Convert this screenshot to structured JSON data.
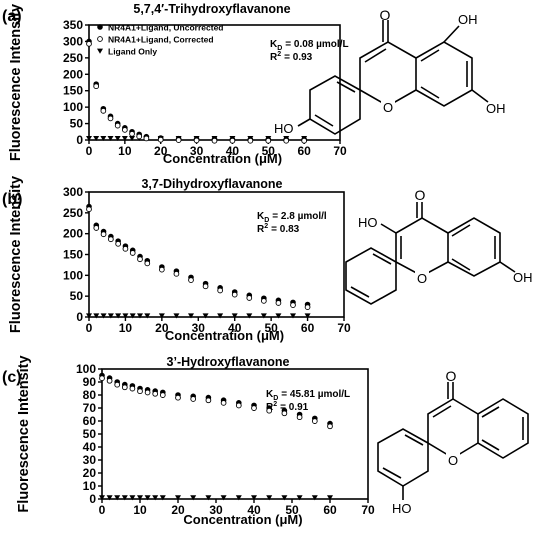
{
  "figure": {
    "panels": [
      {
        "label": "(a)",
        "title": "5,7,4′-Trihydroxyflavanone",
        "stats": {
          "kd_prefix": "K",
          "kd_sub": "D",
          "kd_value": "= 0.08 µmol/L",
          "r2_prefix": "R",
          "r2_sup": "2",
          "r2_value": "= 0.93"
        },
        "substituents": [
          "O",
          "OH",
          "OH",
          "HO"
        ]
      },
      {
        "label": "(b)",
        "title": "3,7-Dihydroxyflavanone",
        "stats": {
          "kd_prefix": "K",
          "kd_sub": "D",
          "kd_value": "= 2.8 µmol/l",
          "r2_prefix": "R",
          "r2_sup": "2",
          "r2_value": "= 0.83"
        },
        "substituents": [
          "O",
          "HO",
          "OH"
        ]
      },
      {
        "label": "(c)",
        "title": "3’-Hydroxyflavanone",
        "stats": {
          "kd_prefix": "K",
          "kd_sub": "D",
          "kd_value": "= 45.81 µmol/L",
          "r2_prefix": "R",
          "r2_sup": "2",
          "r2_value": "= 0.91"
        },
        "substituents": [
          "O",
          "HO"
        ]
      }
    ],
    "ring_oxygen": "O"
  },
  "chart_data": [
    {
      "type": "scatter",
      "title": "5,7,4′-Trihydroxyflavanone",
      "xlabel": "Concentration (μM)",
      "ylabel": "Fluorescence Intensity",
      "xlim": [
        0,
        70
      ],
      "ylim": [
        0,
        350
      ],
      "x_ticks": [
        0,
        10,
        20,
        30,
        40,
        50,
        60,
        70
      ],
      "y_ticks": [
        0,
        50,
        100,
        150,
        200,
        250,
        300,
        350
      ],
      "grid": false,
      "legend": "top-left",
      "series": [
        {
          "name": "NR4A1+Ligand, Uncorrected",
          "marker": "filled-circle",
          "x": [
            0,
            2,
            4,
            6,
            8,
            10,
            12,
            14,
            16,
            20,
            25,
            30,
            35,
            40,
            45,
            50,
            55,
            60
          ],
          "y": [
            300,
            170,
            95,
            72,
            50,
            37,
            25,
            17,
            10,
            6,
            4,
            3,
            3,
            2,
            2,
            2,
            2,
            2
          ]
        },
        {
          "name": "NR4A1+Ligand, Corrected",
          "marker": "open-circle",
          "x": [
            0,
            2,
            4,
            6,
            8,
            10,
            12,
            14,
            16,
            20,
            25,
            30,
            35,
            40,
            45,
            50,
            55,
            60
          ],
          "y": [
            297,
            168,
            93,
            70,
            48,
            35,
            23,
            15,
            9,
            5,
            4,
            3,
            2,
            2,
            2,
            2,
            2,
            2
          ]
        },
        {
          "name": "Ligand Only",
          "marker": "triangle-down",
          "x": [
            0,
            2,
            4,
            6,
            8,
            10,
            12,
            14,
            16,
            20,
            25,
            30,
            35,
            40,
            45,
            50,
            55,
            60
          ],
          "y": [
            5,
            5,
            5,
            5,
            5,
            5,
            5,
            5,
            5,
            5,
            5,
            5,
            5,
            5,
            5,
            5,
            5,
            5
          ]
        }
      ]
    },
    {
      "type": "scatter",
      "title": "3,7-Dihydroxyflavanone",
      "xlabel": "Concentration (μM)",
      "ylabel": "Fluorescence Intensity",
      "xlim": [
        0,
        70
      ],
      "ylim": [
        0,
        300
      ],
      "x_ticks": [
        0,
        10,
        20,
        30,
        40,
        50,
        60,
        70
      ],
      "y_ticks": [
        0,
        50,
        100,
        150,
        200,
        250,
        300
      ],
      "grid": false,
      "series": [
        {
          "name": "NR4A1+Ligand, Uncorrected",
          "marker": "filled-circle",
          "x": [
            0,
            2,
            4,
            6,
            8,
            10,
            12,
            14,
            16,
            20,
            24,
            28,
            32,
            36,
            40,
            44,
            48,
            52,
            56,
            60
          ],
          "y": [
            265,
            220,
            205,
            193,
            182,
            170,
            160,
            145,
            135,
            120,
            110,
            95,
            80,
            70,
            60,
            52,
            45,
            40,
            35,
            30
          ]
        },
        {
          "name": "NR4A1+Ligand, Corrected",
          "marker": "open-circle",
          "x": [
            0,
            2,
            4,
            6,
            8,
            10,
            12,
            14,
            16,
            20,
            24,
            28,
            32,
            36,
            40,
            44,
            48,
            52,
            56,
            60
          ],
          "y": [
            262,
            217,
            202,
            190,
            179,
            167,
            157,
            142,
            132,
            117,
            107,
            92,
            77,
            67,
            57,
            49,
            42,
            37,
            32,
            27
          ]
        },
        {
          "name": "Ligand Only",
          "marker": "triangle-down",
          "x": [
            0,
            2,
            4,
            6,
            8,
            10,
            12,
            14,
            16,
            20,
            24,
            28,
            32,
            36,
            40,
            44,
            48,
            52,
            56,
            60
          ],
          "y": [
            3,
            3,
            3,
            3,
            3,
            3,
            3,
            3,
            3,
            3,
            3,
            3,
            3,
            3,
            3,
            3,
            3,
            3,
            3,
            3
          ]
        }
      ]
    },
    {
      "type": "scatter",
      "title": "3’-Hydroxyflavanone",
      "xlabel": "Concentration (μM)",
      "ylabel": "Fluorescence Intensity",
      "xlim": [
        0,
        70
      ],
      "ylim": [
        0,
        100
      ],
      "x_ticks": [
        0,
        10,
        20,
        30,
        40,
        50,
        60,
        70
      ],
      "y_ticks": [
        0,
        10,
        20,
        30,
        40,
        50,
        60,
        70,
        80,
        90,
        100
      ],
      "grid": false,
      "series": [
        {
          "name": "NR4A1+Ligand, Uncorrected",
          "marker": "filled-circle",
          "x": [
            0,
            2,
            4,
            6,
            8,
            10,
            12,
            14,
            16,
            20,
            24,
            28,
            32,
            36,
            40,
            44,
            48,
            52,
            56,
            60
          ],
          "y": [
            95,
            93,
            90,
            88,
            87,
            85,
            84,
            83,
            82,
            80,
            79,
            78,
            76,
            74,
            72,
            70,
            68,
            65,
            62,
            58
          ]
        },
        {
          "name": "NR4A1+Ligand, Corrected",
          "marker": "open-circle",
          "x": [
            0,
            2,
            4,
            6,
            8,
            10,
            12,
            14,
            16,
            20,
            24,
            28,
            32,
            36,
            40,
            44,
            48,
            52,
            56,
            60
          ],
          "y": [
            94,
            92,
            89,
            87,
            86,
            84,
            83,
            82,
            81,
            79,
            78,
            77,
            75,
            73,
            71,
            69,
            67,
            64,
            61,
            57
          ]
        },
        {
          "name": "Ligand Only",
          "marker": "triangle-down",
          "x": [
            0,
            2,
            4,
            6,
            8,
            10,
            12,
            14,
            16,
            20,
            24,
            28,
            32,
            36,
            40,
            44,
            48,
            52,
            56,
            60
          ],
          "y": [
            1,
            1,
            1,
            1,
            1,
            1,
            1,
            1,
            1,
            1,
            1,
            1,
            1,
            1,
            1,
            1,
            1,
            1,
            1,
            1
          ]
        }
      ]
    }
  ]
}
